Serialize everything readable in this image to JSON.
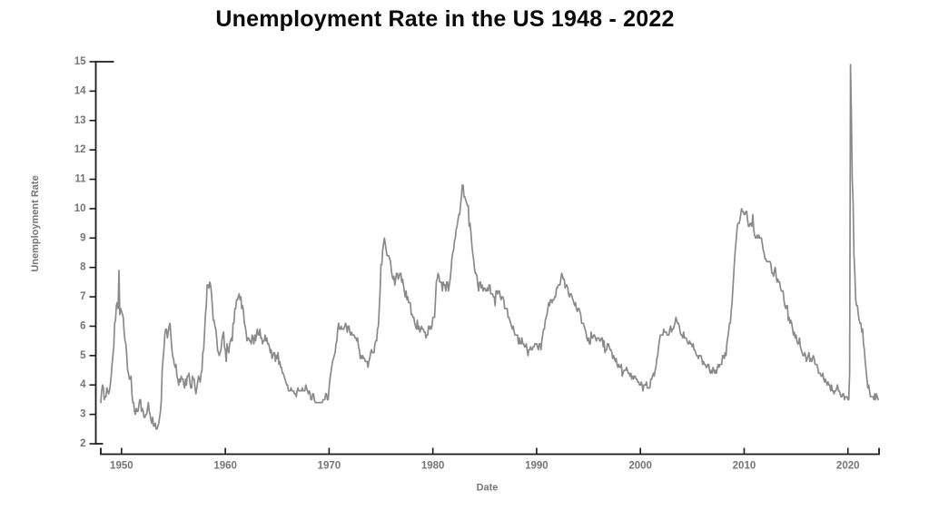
{
  "chart_data": {
    "type": "line",
    "title": "Unemployment Rate in the US 1948 - 2022",
    "xlabel": "Date",
    "ylabel": "Unemployment Rate",
    "x_ticks": [
      1950,
      1960,
      1970,
      1980,
      1990,
      2000,
      2010,
      2020
    ],
    "y_ticks": [
      2,
      3,
      4,
      5,
      6,
      7,
      8,
      9,
      10,
      11,
      12,
      13,
      14,
      15
    ],
    "xlim": [
      1948,
      2023
    ],
    "ylim": [
      2,
      15
    ],
    "grid": false,
    "legend": "none",
    "line_color": "#8a8a8a",
    "axis_color": "#1a1a1a",
    "tick_label_color": "#757575",
    "series": [
      {
        "name": "Unemployment Rate",
        "frequency": "monthly",
        "start_year": 1948,
        "end_year": 2022,
        "monthly_values": [
          [
            3.4,
            3.8,
            4.0,
            3.9,
            3.5,
            3.6,
            3.6,
            3.9,
            3.8,
            3.7,
            3.8,
            4.0
          ],
          [
            4.3,
            4.7,
            5.0,
            5.3,
            6.1,
            6.2,
            6.7,
            6.8,
            6.6,
            7.9,
            6.4,
            6.6
          ],
          [
            6.5,
            6.4,
            6.3,
            5.8,
            5.5,
            5.4,
            5.0,
            4.5,
            4.4,
            4.2,
            4.2,
            4.3
          ],
          [
            3.7,
            3.4,
            3.4,
            3.1,
            3.0,
            3.2,
            3.1,
            3.1,
            3.3,
            3.5,
            3.5,
            3.1
          ],
          [
            3.2,
            3.1,
            2.9,
            2.9,
            3.0,
            3.0,
            3.2,
            3.4,
            3.1,
            3.0,
            2.8,
            2.7
          ],
          [
            2.9,
            2.6,
            2.6,
            2.7,
            2.5,
            2.5,
            2.6,
            2.7,
            2.9,
            3.1,
            3.5,
            4.5
          ],
          [
            4.9,
            5.2,
            5.7,
            5.9,
            5.9,
            5.6,
            5.8,
            6.0,
            6.1,
            5.7,
            5.3,
            5.0
          ],
          [
            4.9,
            4.7,
            4.6,
            4.7,
            4.3,
            4.2,
            4.0,
            4.2,
            4.1,
            4.3,
            4.2,
            4.2
          ],
          [
            4.0,
            3.9,
            4.2,
            4.0,
            4.3,
            4.3,
            4.4,
            4.1,
            3.9,
            3.9,
            4.3,
            4.2
          ],
          [
            4.2,
            3.9,
            3.7,
            3.9,
            4.1,
            4.3,
            4.2,
            4.1,
            4.4,
            4.5,
            5.1,
            5.2
          ],
          [
            5.8,
            6.4,
            6.7,
            7.4,
            7.4,
            7.3,
            7.5,
            7.4,
            7.1,
            6.7,
            6.2,
            6.2
          ],
          [
            6.0,
            5.9,
            5.6,
            5.2,
            5.1,
            5.0,
            5.1,
            5.2,
            5.5,
            5.7,
            5.8,
            5.3
          ],
          [
            5.2,
            4.8,
            5.4,
            5.2,
            5.1,
            5.4,
            5.5,
            5.6,
            5.5,
            6.1,
            6.1,
            6.6
          ],
          [
            6.6,
            6.9,
            6.9,
            7.0,
            7.1,
            6.9,
            7.0,
            6.6,
            6.7,
            6.5,
            6.1,
            6.0
          ],
          [
            5.8,
            5.5,
            5.6,
            5.6,
            5.5,
            5.5,
            5.4,
            5.7,
            5.6,
            5.4,
            5.7,
            5.5
          ],
          [
            5.7,
            5.9,
            5.7,
            5.7,
            5.9,
            5.6,
            5.6,
            5.4,
            5.5,
            5.5,
            5.7,
            5.5
          ],
          [
            5.6,
            5.4,
            5.4,
            5.3,
            5.1,
            5.2,
            4.9,
            5.0,
            5.1,
            5.1,
            4.8,
            5.0
          ],
          [
            4.9,
            5.1,
            4.7,
            4.8,
            4.6,
            4.6,
            4.4,
            4.4,
            4.3,
            4.2,
            4.1,
            4.0
          ],
          [
            4.0,
            3.8,
            3.8,
            3.8,
            3.9,
            3.8,
            3.8,
            3.8,
            3.7,
            3.7,
            3.6,
            3.8
          ],
          [
            3.9,
            3.8,
            3.8,
            3.8,
            3.8,
            3.9,
            3.8,
            3.8,
            3.8,
            4.0,
            3.9,
            3.8
          ],
          [
            3.7,
            3.8,
            3.7,
            3.5,
            3.5,
            3.7,
            3.7,
            3.5,
            3.4,
            3.4,
            3.4,
            3.4
          ],
          [
            3.4,
            3.4,
            3.4,
            3.4,
            3.4,
            3.5,
            3.5,
            3.5,
            3.7,
            3.7,
            3.5,
            3.5
          ],
          [
            3.9,
            4.2,
            4.4,
            4.6,
            4.8,
            4.9,
            5.0,
            5.1,
            5.4,
            5.5,
            5.9,
            6.1
          ],
          [
            5.9,
            5.9,
            6.0,
            5.9,
            5.9,
            5.9,
            6.0,
            6.1,
            6.0,
            5.8,
            6.0,
            6.0
          ],
          [
            5.8,
            5.7,
            5.8,
            5.7,
            5.7,
            5.7,
            5.6,
            5.6,
            5.5,
            5.6,
            5.3,
            5.2
          ],
          [
            4.9,
            5.0,
            4.9,
            5.0,
            4.9,
            4.9,
            4.8,
            4.8,
            4.8,
            4.6,
            4.8,
            4.9
          ],
          [
            5.1,
            5.2,
            5.1,
            5.1,
            5.1,
            5.4,
            5.5,
            5.5,
            5.9,
            6.0,
            6.6,
            7.2
          ],
          [
            8.1,
            8.1,
            8.6,
            8.8,
            9.0,
            8.8,
            8.6,
            8.4,
            8.4,
            8.4,
            8.3,
            8.2
          ],
          [
            7.9,
            7.7,
            7.6,
            7.7,
            7.4,
            7.6,
            7.8,
            7.8,
            7.6,
            7.7,
            7.8,
            7.8
          ],
          [
            7.5,
            7.6,
            7.4,
            7.2,
            7.0,
            7.2,
            6.9,
            7.0,
            6.8,
            6.8,
            6.8,
            6.4
          ],
          [
            6.4,
            6.3,
            6.3,
            6.1,
            6.0,
            5.9,
            6.2,
            5.9,
            6.0,
            5.8,
            5.9,
            6.0
          ],
          [
            5.9,
            5.9,
            5.8,
            5.8,
            5.6,
            5.7,
            5.7,
            6.0,
            5.9,
            6.0,
            5.9,
            6.0
          ],
          [
            6.3,
            6.3,
            6.3,
            6.9,
            7.5,
            7.6,
            7.8,
            7.7,
            7.5,
            7.5,
            7.5,
            7.2
          ],
          [
            7.5,
            7.4,
            7.4,
            7.2,
            7.5,
            7.5,
            7.2,
            7.4,
            7.6,
            7.9,
            8.3,
            8.5
          ],
          [
            8.6,
            8.9,
            9.0,
            9.3,
            9.4,
            9.6,
            9.8,
            9.8,
            10.1,
            10.4,
            10.8,
            10.8
          ],
          [
            10.4,
            10.4,
            10.3,
            10.2,
            10.1,
            10.1,
            9.4,
            9.5,
            9.2,
            8.8,
            8.5,
            8.3
          ],
          [
            8.0,
            7.8,
            7.8,
            7.7,
            7.4,
            7.2,
            7.5,
            7.5,
            7.3,
            7.4,
            7.2,
            7.3
          ],
          [
            7.3,
            7.2,
            7.2,
            7.3,
            7.2,
            7.4,
            7.4,
            7.1,
            7.1,
            7.1,
            7.0,
            7.0
          ],
          [
            6.7,
            7.2,
            7.2,
            7.1,
            7.2,
            7.2,
            7.0,
            6.9,
            7.0,
            7.0,
            6.9,
            6.6
          ],
          [
            6.6,
            6.6,
            6.6,
            6.3,
            6.3,
            6.2,
            6.1,
            6.0,
            5.9,
            6.0,
            5.8,
            5.7
          ],
          [
            5.7,
            5.7,
            5.7,
            5.4,
            5.6,
            5.4,
            5.4,
            5.6,
            5.4,
            5.4,
            5.3,
            5.3
          ],
          [
            5.4,
            5.2,
            5.0,
            5.2,
            5.2,
            5.3,
            5.2,
            5.2,
            5.3,
            5.3,
            5.4,
            5.4
          ],
          [
            5.4,
            5.3,
            5.2,
            5.4,
            5.4,
            5.2,
            5.5,
            5.7,
            5.9,
            5.9,
            6.2,
            6.3
          ],
          [
            6.4,
            6.6,
            6.8,
            6.7,
            6.9,
            6.9,
            6.8,
            6.9,
            6.9,
            7.0,
            7.0,
            7.3
          ],
          [
            7.3,
            7.4,
            7.4,
            7.4,
            7.6,
            7.8,
            7.7,
            7.6,
            7.6,
            7.3,
            7.4,
            7.4
          ],
          [
            7.3,
            7.1,
            7.0,
            7.1,
            7.1,
            7.0,
            6.9,
            6.8,
            6.7,
            6.8,
            6.6,
            6.5
          ],
          [
            6.6,
            6.6,
            6.5,
            6.4,
            6.1,
            6.1,
            6.1,
            6.0,
            5.9,
            5.8,
            5.6,
            5.5
          ],
          [
            5.6,
            5.4,
            5.4,
            5.8,
            5.6,
            5.6,
            5.7,
            5.7,
            5.6,
            5.5,
            5.6,
            5.6
          ],
          [
            5.6,
            5.5,
            5.5,
            5.6,
            5.6,
            5.3,
            5.5,
            5.1,
            5.2,
            5.2,
            5.4,
            5.4
          ],
          [
            5.3,
            5.2,
            5.2,
            5.1,
            4.9,
            5.0,
            4.9,
            4.8,
            4.9,
            4.7,
            4.6,
            4.7
          ],
          [
            4.6,
            4.6,
            4.7,
            4.3,
            4.4,
            4.5,
            4.5,
            4.5,
            4.6,
            4.5,
            4.4,
            4.4
          ],
          [
            4.3,
            4.4,
            4.2,
            4.3,
            4.2,
            4.3,
            4.3,
            4.2,
            4.2,
            4.1,
            4.1,
            4.0
          ],
          [
            4.0,
            4.1,
            4.0,
            3.8,
            4.0,
            4.0,
            4.0,
            4.1,
            3.9,
            3.9,
            3.9,
            3.9
          ],
          [
            4.2,
            4.2,
            4.3,
            4.4,
            4.3,
            4.5,
            4.6,
            4.9,
            5.0,
            5.3,
            5.5,
            5.7
          ],
          [
            5.7,
            5.7,
            5.7,
            5.9,
            5.8,
            5.8,
            5.8,
            5.7,
            5.7,
            5.7,
            5.9,
            6.0
          ],
          [
            5.8,
            5.9,
            5.9,
            6.0,
            6.1,
            6.3,
            6.2,
            6.1,
            6.1,
            6.0,
            5.8,
            5.7
          ],
          [
            5.7,
            5.6,
            5.8,
            5.6,
            5.6,
            5.6,
            5.5,
            5.4,
            5.4,
            5.5,
            5.4,
            5.4
          ],
          [
            5.3,
            5.4,
            5.2,
            5.2,
            5.1,
            5.0,
            5.0,
            4.9,
            5.0,
            5.0,
            5.0,
            4.9
          ],
          [
            4.7,
            4.8,
            4.7,
            4.7,
            4.6,
            4.6,
            4.7,
            4.7,
            4.5,
            4.4,
            4.5,
            4.4
          ],
          [
            4.6,
            4.5,
            4.4,
            4.5,
            4.4,
            4.6,
            4.7,
            4.6,
            4.7,
            4.7,
            4.7,
            5.0
          ],
          [
            5.0,
            4.9,
            5.1,
            5.0,
            5.4,
            5.6,
            5.8,
            6.1,
            6.1,
            6.5,
            6.8,
            7.3
          ],
          [
            7.8,
            8.3,
            8.7,
            9.0,
            9.4,
            9.5,
            9.5,
            9.6,
            9.8,
            10.0,
            9.9,
            9.9
          ],
          [
            9.8,
            9.8,
            9.9,
            9.9,
            9.6,
            9.4,
            9.4,
            9.5,
            9.5,
            9.4,
            9.8,
            9.3
          ],
          [
            9.1,
            9.0,
            9.0,
            9.1,
            9.0,
            9.1,
            9.0,
            9.0,
            9.0,
            8.8,
            8.6,
            8.5
          ],
          [
            8.3,
            8.3,
            8.2,
            8.2,
            8.2,
            8.2,
            8.2,
            8.1,
            7.8,
            7.8,
            7.7,
            7.9
          ],
          [
            8.0,
            7.7,
            7.5,
            7.6,
            7.5,
            7.5,
            7.3,
            7.2,
            7.2,
            7.2,
            6.9,
            6.7
          ],
          [
            6.6,
            6.7,
            6.7,
            6.2,
            6.3,
            6.1,
            6.2,
            6.1,
            5.9,
            5.7,
            5.8,
            5.6
          ],
          [
            5.7,
            5.5,
            5.4,
            5.4,
            5.6,
            5.3,
            5.2,
            5.1,
            5.0,
            5.0,
            5.1,
            5.0
          ],
          [
            4.8,
            4.9,
            5.0,
            5.1,
            4.8,
            4.9,
            4.8,
            4.9,
            5.0,
            4.9,
            4.7,
            4.7
          ],
          [
            4.7,
            4.6,
            4.4,
            4.4,
            4.4,
            4.3,
            4.3,
            4.4,
            4.2,
            4.1,
            4.2,
            4.1
          ],
          [
            4.0,
            4.1,
            4.0,
            4.0,
            3.8,
            4.0,
            3.8,
            3.8,
            3.7,
            3.8,
            3.8,
            3.9
          ],
          [
            4.0,
            3.8,
            3.8,
            3.7,
            3.6,
            3.6,
            3.7,
            3.7,
            3.5,
            3.6,
            3.6,
            3.6
          ],
          [
            3.5,
            3.5,
            4.4,
            14.9,
            13.2,
            11.0,
            10.2,
            8.4,
            7.8,
            6.9,
            6.7,
            6.7
          ],
          [
            6.4,
            6.2,
            6.1,
            6.1,
            5.8,
            5.9,
            5.4,
            5.2,
            4.8,
            4.5,
            4.2,
            3.9
          ],
          [
            4.0,
            3.8,
            3.6,
            3.6,
            3.6,
            3.6,
            3.5,
            3.7,
            3.5,
            3.7,
            3.6,
            3.5
          ]
        ]
      }
    ]
  }
}
